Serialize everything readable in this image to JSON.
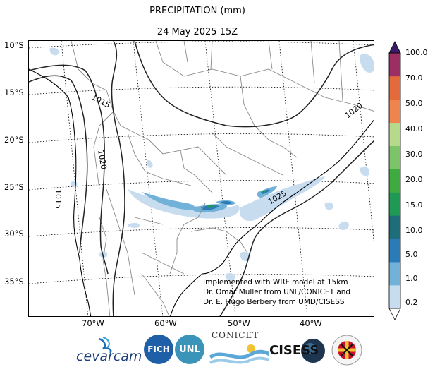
{
  "title": "PRECIPITATION (mm)",
  "subtitle": "24 May 2025 15Z",
  "lat_labels": [
    "10°S",
    "15°S",
    "20°S",
    "25°S",
    "30°S",
    "35°S"
  ],
  "lon_labels": [
    "70°W",
    "60°W",
    "50°W",
    "40°W"
  ],
  "colorbar": {
    "labels": [
      "100.0",
      "70.0",
      "50.0",
      "40.0",
      "30.0",
      "20.0",
      "15.0",
      "10.0",
      "5.0",
      "1.0",
      "0.2"
    ],
    "colors": [
      "#ffffff",
      "#c7dcef",
      "#73b2d8",
      "#2b7bb9",
      "#1d6e7a",
      "#1f9a54",
      "#3faa3f",
      "#7cc36a",
      "#b7d98a",
      "#f0844f",
      "#e36a3a",
      "#9b2f63",
      "#3b1a66"
    ]
  },
  "isobars": [
    "1015",
    "1015",
    "1020",
    "1020",
    "1025"
  ],
  "note": [
    "Implemented with WRF model at 15km",
    "Dr. Omar Müller from UNL/CONICET and",
    "Dr. E. Hugo Berbery from UMD/CISESS"
  ],
  "logos": {
    "cevarcam": "cevarcam",
    "fich": "FICH",
    "unl": "UNL",
    "conicet": "CONICET",
    "cisess": "CISESS"
  }
}
